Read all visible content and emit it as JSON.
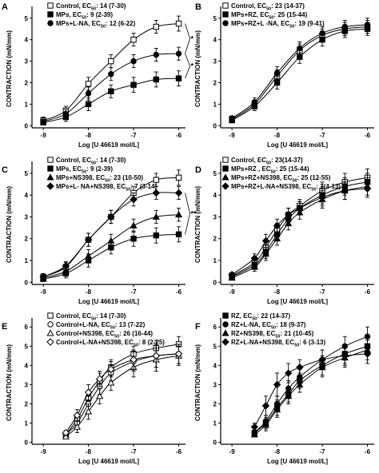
{
  "chart_data": [
    {
      "panel": "A",
      "type": "line",
      "xlabel": "Log [U 46619 mol/L]",
      "ylabel": "CONTRACTION (mN/mm)",
      "xlim": [
        -9.25,
        -5.85
      ],
      "ylim": [
        -0.1,
        5.4
      ],
      "xticks": [
        "-9",
        "-8",
        "-7",
        "-6"
      ],
      "yticks": [
        "0",
        "1",
        "2",
        "3",
        "4",
        "5"
      ],
      "x": [
        -9,
        -8.5,
        -8,
        -7.5,
        -7,
        -6.5,
        -6
      ],
      "series": [
        {
          "name": "Control, EC50: 14 (7-30)",
          "label_main": "Control, EC",
          "label_sub": "50",
          "label_rest": ": 14 (7-30)",
          "marker": "open-square",
          "values": [
            0.25,
            0.7,
            1.95,
            3.0,
            4.0,
            4.6,
            4.75
          ],
          "errors": [
            0.15,
            0.2,
            0.3,
            0.3,
            0.3,
            0.3,
            0.35
          ]
        },
        {
          "name": "MPs, EC50: 9 (2-39)",
          "label_main": "MPs, EC",
          "label_sub": "50",
          "label_rest": ": 9 (2-39)",
          "marker": "filled-square",
          "values": [
            0.15,
            0.4,
            1.0,
            1.6,
            1.9,
            2.15,
            2.2
          ],
          "errors": [
            0.1,
            0.2,
            0.3,
            0.3,
            0.35,
            0.35,
            0.35
          ]
        },
        {
          "name": "MPs+L-NA, EC50: 12 (6-22)",
          "label_main": "MPs+L-NA, EC",
          "label_sub": "50",
          "label_rest": ": 12 (6-22)",
          "marker": "filled-circle",
          "values": [
            0.2,
            0.55,
            1.5,
            2.4,
            3.0,
            3.3,
            3.35
          ],
          "errors": [
            0.1,
            0.2,
            0.3,
            0.3,
            0.3,
            0.3,
            0.3
          ]
        }
      ],
      "annotations": [
        "*",
        "*"
      ]
    },
    {
      "panel": "B",
      "type": "line",
      "xlabel": "Log [U 46619 mol/L]",
      "ylabel": "CONTRACTION (mN/mm)",
      "xlim": [
        -9.25,
        -5.85
      ],
      "ylim": [
        -0.1,
        5.4
      ],
      "xticks": [
        "-9",
        "-8",
        "-7",
        "-6"
      ],
      "yticks": [
        "0",
        "1",
        "2",
        "3",
        "4",
        "5"
      ],
      "x": [
        -9,
        -8.5,
        -8,
        -7.5,
        -7,
        -6.5,
        -6
      ],
      "series": [
        {
          "name": "Control, EC50: 23 (14-37)",
          "label_main": "Control, EC",
          "label_sub": "50",
          "label_rest": ": 23 (14-37)",
          "marker": "open-square",
          "values": [
            0.3,
            1.0,
            2.3,
            3.5,
            4.2,
            4.5,
            4.6
          ],
          "errors": [
            0.1,
            0.2,
            0.3,
            0.3,
            0.3,
            0.3,
            0.3
          ]
        },
        {
          "name": "MPs+RZ, EC50: 25 (15-44)",
          "label_main": "MPs+RZ, EC",
          "label_sub": "50",
          "label_rest": ": 25 (15-44)",
          "marker": "filled-square",
          "values": [
            0.25,
            0.9,
            2.0,
            3.2,
            4.0,
            4.4,
            4.5
          ],
          "errors": [
            0.1,
            0.2,
            0.3,
            0.3,
            0.3,
            0.3,
            0.3
          ]
        },
        {
          "name": "MPs+RZ+L -NA, EC50: 19 (9-41)",
          "label_main": "MPs+RZ+L -NA, EC",
          "label_sub": "50",
          "label_rest": ": 19 (9-41)",
          "marker": "filled-circle",
          "values": [
            0.35,
            1.1,
            2.45,
            3.6,
            4.3,
            4.6,
            4.7
          ],
          "errors": [
            0.1,
            0.2,
            0.3,
            0.3,
            0.3,
            0.3,
            0.3
          ]
        }
      ]
    },
    {
      "panel": "C",
      "type": "line",
      "xlabel": "Log [U 46619 mol/L]",
      "ylabel": "CONTRACTION (mN/mm)",
      "xlim": [
        -9.25,
        -5.85
      ],
      "ylim": [
        -0.1,
        5.4
      ],
      "xticks": [
        "-9",
        "-8",
        "-7",
        "-6"
      ],
      "yticks": [
        "0",
        "1",
        "2",
        "3",
        "4",
        "5"
      ],
      "x": [
        -9,
        -8.5,
        -8,
        -7.5,
        -7,
        -6.5,
        -6
      ],
      "series": [
        {
          "name": "Control, EC50: 14 (7-30)",
          "label_main": "Control, EC",
          "label_sub": "50",
          "label_rest": ": 14 (7-30)",
          "marker": "open-square",
          "values": [
            0.25,
            0.7,
            1.95,
            3.0,
            4.1,
            4.7,
            4.8
          ],
          "errors": [
            0.15,
            0.2,
            0.3,
            0.3,
            0.3,
            0.3,
            0.35
          ]
        },
        {
          "name": "MPs, EC50: 9 (2-39)",
          "label_main": "MPs, EC",
          "label_sub": "50",
          "label_rest": ": 9 (2-39)",
          "marker": "filled-square",
          "values": [
            0.15,
            0.4,
            1.0,
            1.6,
            2.0,
            2.15,
            2.2
          ],
          "errors": [
            0.1,
            0.2,
            0.3,
            0.3,
            0.35,
            0.35,
            0.35
          ]
        },
        {
          "name": "MPs+NS398, EC50: 23 (10-50)",
          "label_main": "MPs+NS398, EC",
          "label_sub": "50",
          "label_rest": ": 23 (10-50)",
          "marker": "filled-triangle",
          "values": [
            0.2,
            0.5,
            1.2,
            1.9,
            2.6,
            3.0,
            3.1
          ],
          "errors": [
            0.1,
            0.2,
            0.3,
            0.3,
            0.3,
            0.3,
            0.3
          ]
        },
        {
          "name": "MPs+L- NA+NS398, EC50: 7 (3-14)",
          "label_main": "MPs+L- NA+NS398, EC",
          "label_sub": "50",
          "label_rest": ": 7 (3-14)",
          "marker": "filled-diamond",
          "values": [
            0.25,
            0.75,
            1.95,
            3.0,
            3.8,
            4.1,
            4.1
          ],
          "errors": [
            0.1,
            0.2,
            0.3,
            0.3,
            0.3,
            0.3,
            0.3
          ]
        }
      ],
      "annotations": [
        "**"
      ]
    },
    {
      "panel": "D",
      "type": "line",
      "xlabel": "Log [U 46619 mol/L]",
      "ylabel": "CONTRACTION (mN/mm)",
      "xlim": [
        -9.25,
        -5.85
      ],
      "ylim": [
        -0.1,
        5.4
      ],
      "xticks": [
        "-9",
        "-8",
        "-7",
        "-6"
      ],
      "yticks": [
        "0",
        "1",
        "2",
        "3",
        "4",
        "5"
      ],
      "x": [
        -9,
        -8.5,
        -8.25,
        -8,
        -7.75,
        -7.5,
        -7,
        -6.5,
        -6
      ],
      "series": [
        {
          "name": "Control, EC50: 23(14-37)",
          "label_main": "Control, EC",
          "label_sub": "50",
          "label_rest": ": 23(14-37)",
          "marker": "open-square",
          "values": [
            0.3,
            0.9,
            1.6,
            2.4,
            3.1,
            3.5,
            4.2,
            4.6,
            4.8
          ],
          "errors": [
            0.1,
            0.2,
            0.3,
            0.3,
            0.3,
            0.3,
            0.4,
            0.4,
            0.4
          ]
        },
        {
          "name": "MPs+RZ , EC50: 25 (15-44)",
          "label_main": "MPs+RZ , EC",
          "label_sub": "50",
          "label_rest": ": 25 (15-44)",
          "marker": "filled-square",
          "values": [
            0.25,
            0.8,
            1.4,
            2.2,
            2.9,
            3.4,
            4.0,
            4.4,
            4.6
          ],
          "errors": [
            0.1,
            0.2,
            0.3,
            0.3,
            0.3,
            0.3,
            0.4,
            0.4,
            0.4
          ]
        },
        {
          "name": "MPs+RZ+NS398, EC50: 25 (12-55)",
          "label_main": "MPs+RZ+NS398, EC",
          "label_sub": "50",
          "label_rest": ": 25 (12-55)",
          "marker": "filled-triangle",
          "values": [
            0.2,
            0.7,
            1.3,
            2.0,
            2.7,
            3.2,
            3.8,
            4.2,
            4.4
          ],
          "errors": [
            0.1,
            0.2,
            0.3,
            0.3,
            0.3,
            0.3,
            0.4,
            0.4,
            0.4
          ]
        },
        {
          "name": "MPs+RZ+L-NA+NS398, EC50: 7(4-13)",
          "label_main": "MPs+RZ+L-NA+NS398, EC",
          "label_sub": "50",
          "label_rest": ": 7(4-13)",
          "marker": "filled-diamond",
          "values": [
            0.35,
            1.1,
            1.9,
            2.6,
            3.1,
            3.4,
            3.9,
            4.2,
            4.3
          ],
          "errors": [
            0.1,
            0.2,
            0.3,
            0.3,
            0.3,
            0.3,
            0.4,
            0.4,
            0.4
          ]
        }
      ]
    },
    {
      "panel": "E",
      "type": "line",
      "xlabel": "Log [U 46619 mol/L]",
      "ylabel": "CONTRACTION (mN/mm)",
      "xlim": [
        -9.25,
        -5.85
      ],
      "ylim": [
        -0.1,
        6.3
      ],
      "xticks": [
        "-9",
        "-8",
        "-7",
        "-6"
      ],
      "yticks": [
        "0",
        "1",
        "2",
        "3",
        "4",
        "5",
        "6"
      ],
      "x": [
        -8.5,
        -8.25,
        -8,
        -7.75,
        -7.5,
        -7,
        -6.5,
        -6
      ],
      "series": [
        {
          "name": "Control, EC50: 14 (7-30)",
          "label_main": "Control, EC",
          "label_sub": "50",
          "label_rest": ": 14 (7-30)",
          "marker": "open-square",
          "values": [
            0.4,
            1.2,
            2.3,
            3.2,
            3.9,
            4.6,
            4.9,
            5.1
          ],
          "errors": [
            0.1,
            0.3,
            0.4,
            0.4,
            0.4,
            0.4,
            0.4,
            0.4
          ]
        },
        {
          "name": "Control+L-NA, EC50: 13 (7-22)",
          "label_main": "Control+L-NA, EC",
          "label_sub": "50",
          "label_rest": ": 13 (7-22)",
          "marker": "open-circle",
          "values": [
            0.4,
            1.0,
            2.0,
            2.9,
            3.6,
            4.2,
            4.5,
            4.6
          ],
          "errors": [
            0.1,
            0.3,
            0.4,
            0.4,
            0.4,
            0.5,
            0.6,
            0.5
          ]
        },
        {
          "name": "Control+NS398, EC50: 26 (16-44)",
          "label_main": "Control+NS398, EC",
          "label_sub": "50",
          "label_rest": ": 26 (16-44)",
          "marker": "open-triangle",
          "values": [
            0.3,
            0.8,
            1.6,
            2.4,
            3.1,
            3.9,
            4.3,
            4.5
          ],
          "errors": [
            0.1,
            0.3,
            0.4,
            0.4,
            0.4,
            0.5,
            0.6,
            0.5
          ]
        },
        {
          "name": "Control+L-NA+NS398, EC50: 8 (2-25)",
          "label_main": "Control+L-NA+NS398, EC",
          "label_sub": "50",
          "label_rest": ": 8 (2-25)",
          "marker": "open-diamond",
          "values": [
            0.5,
            1.4,
            2.6,
            3.3,
            3.8,
            4.3,
            4.5,
            4.6
          ],
          "errors": [
            0.1,
            0.3,
            0.4,
            0.4,
            0.4,
            0.5,
            0.6,
            0.5
          ]
        }
      ]
    },
    {
      "panel": "F",
      "type": "line",
      "xlabel": "Log [U 46619 mol/L]",
      "ylabel": "CONTRACTION (mN/mm)",
      "xlim": [
        -9.25,
        -5.85
      ],
      "ylim": [
        -0.1,
        6.3
      ],
      "xticks": [
        "-9",
        "-8",
        "-7",
        "-6"
      ],
      "yticks": [
        "0",
        "1",
        "2",
        "3",
        "4",
        "5",
        "6"
      ],
      "x": [
        -8.5,
        -8.25,
        -8,
        -7.75,
        -7.5,
        -7,
        -6.5,
        -6
      ],
      "series": [
        {
          "name": "RZ, EC50: 22 (14-37)",
          "label_main": "RZ, EC",
          "label_sub": "50",
          "label_rest": ": 22 (14-37)",
          "marker": "filled-square",
          "values": [
            0.5,
            1.0,
            1.8,
            2.5,
            3.2,
            4.0,
            4.6,
            5.0
          ],
          "errors": [
            0.1,
            0.3,
            0.4,
            0.4,
            0.4,
            0.5,
            0.5,
            0.5
          ]
        },
        {
          "name": "RZ+L-NA, EC50: 18 (9-37)",
          "label_main": "RZ+L-NA, EC",
          "label_sub": "50",
          "label_rest": ": 18 (9-37)",
          "marker": "filled-circle",
          "values": [
            0.5,
            1.1,
            2.0,
            2.8,
            3.4,
            4.3,
            5.0,
            5.5
          ],
          "errors": [
            0.1,
            0.3,
            0.4,
            0.4,
            0.4,
            0.5,
            0.5,
            0.5
          ]
        },
        {
          "name": "RZ+NS398, EC50: 21 (10-45)",
          "label_main": "RZ+NS398, EC",
          "label_sub": "50",
          "label_rest": ": 21 (10-45)",
          "marker": "filled-triangle",
          "values": [
            0.4,
            0.9,
            1.7,
            2.4,
            3.0,
            3.9,
            4.4,
            4.8
          ],
          "errors": [
            0.1,
            0.3,
            0.4,
            0.4,
            0.4,
            0.5,
            0.5,
            0.5
          ]
        },
        {
          "name": "RZ+L-NA+NS398, EC50: 6 (3-13)",
          "label_main": "RZ+L-NA+NS398, EC",
          "label_sub": "50",
          "label_rest": ": 6 (3-13)",
          "marker": "filled-diamond",
          "values": [
            0.8,
            1.9,
            3.0,
            3.6,
            3.9,
            4.3,
            4.5,
            4.6
          ],
          "errors": [
            0.2,
            0.5,
            0.6,
            0.5,
            0.4,
            0.5,
            0.5,
            0.5
          ]
        }
      ]
    }
  ]
}
